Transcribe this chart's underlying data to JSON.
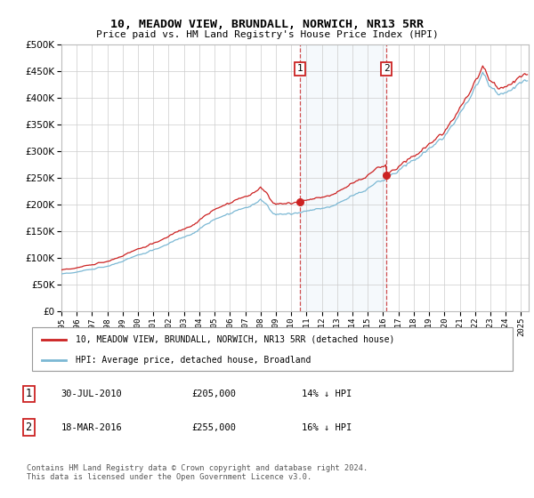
{
  "title": "10, MEADOW VIEW, BRUNDALL, NORWICH, NR13 5RR",
  "subtitle": "Price paid vs. HM Land Registry's House Price Index (HPI)",
  "legend_line1": "10, MEADOW VIEW, BRUNDALL, NORWICH, NR13 5RR (detached house)",
  "legend_line2": "HPI: Average price, detached house, Broadland",
  "sale1_date": "30-JUL-2010",
  "sale1_price": "£205,000",
  "sale1_hpi": "14% ↓ HPI",
  "sale2_date": "18-MAR-2016",
  "sale2_price": "£255,000",
  "sale2_hpi": "16% ↓ HPI",
  "footer": "Contains HM Land Registry data © Crown copyright and database right 2024.\nThis data is licensed under the Open Government Licence v3.0.",
  "hpi_color": "#7bb8d4",
  "price_color": "#cc2222",
  "sale1_x": 2010.583,
  "sale1_y": 205000,
  "sale2_x": 2016.208,
  "sale2_y": 255000,
  "xmin": 1995,
  "xmax": 2025.5,
  "ymin": 0,
  "ymax": 500000,
  "yticks": [
    0,
    50000,
    100000,
    150000,
    200000,
    250000,
    300000,
    350000,
    400000,
    450000,
    500000
  ]
}
